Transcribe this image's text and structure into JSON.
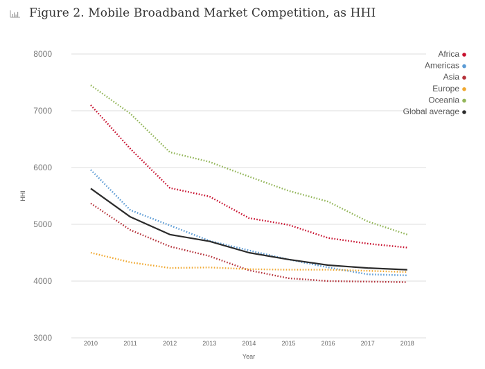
{
  "title": "Figure 2. Mobile Broadband Market Competition, as HHI",
  "title_icon": "bar-chart-icon",
  "chart_data": {
    "type": "line",
    "title": "Figure 2. Mobile Broadband Market Competition, as HHI",
    "xlabel": "Year",
    "ylabel": "HHI",
    "x": [
      "2010",
      "2011",
      "2012",
      "2013",
      "2014",
      "2015",
      "2016",
      "2017",
      "2018"
    ],
    "ylim": [
      3000,
      8000
    ],
    "yticks": [
      "3000",
      "4000",
      "5000",
      "6000",
      "7000",
      "8000"
    ],
    "grid": true,
    "legend_position": "top-right",
    "series": [
      {
        "name": "Africa",
        "color": "#c8102e",
        "style": "dotted",
        "values": [
          7100,
          6330,
          5640,
          5490,
          5110,
          4990,
          4760,
          4660,
          4590
        ]
      },
      {
        "name": "Americas",
        "color": "#5b9bd5",
        "style": "dotted",
        "values": [
          5960,
          5250,
          4980,
          4710,
          4540,
          4380,
          4240,
          4120,
          4100
        ]
      },
      {
        "name": "Asia",
        "color": "#b5323a",
        "style": "dotted",
        "values": [
          5370,
          4900,
          4610,
          4440,
          4190,
          4050,
          4000,
          3990,
          3980
        ]
      },
      {
        "name": "Europe",
        "color": "#f0a830",
        "style": "dotted",
        "values": [
          4500,
          4330,
          4230,
          4240,
          4210,
          4200,
          4200,
          4180,
          4160
        ]
      },
      {
        "name": "Oceania",
        "color": "#92b558",
        "style": "dotted",
        "values": [
          7450,
          6950,
          6270,
          6100,
          5840,
          5590,
          5400,
          5050,
          4820
        ]
      },
      {
        "name": "Global average",
        "color": "#2b2b2b",
        "style": "solid",
        "values": [
          5630,
          5130,
          4820,
          4700,
          4500,
          4380,
          4280,
          4230,
          4200
        ]
      }
    ]
  }
}
